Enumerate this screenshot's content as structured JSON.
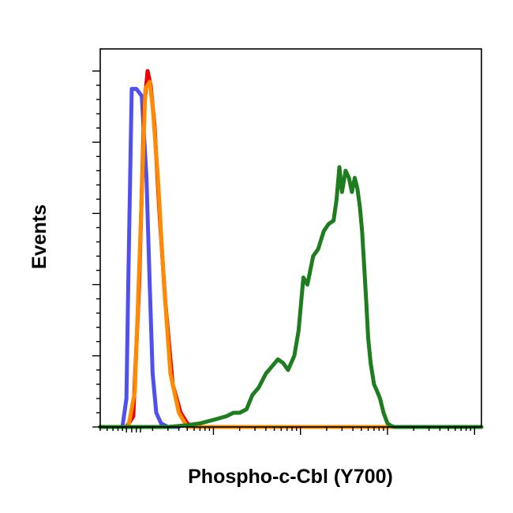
{
  "chart_data": {
    "type": "line",
    "title": "",
    "xlabel": "Phospho-c-Cbl (Y700)",
    "ylabel": "Events",
    "x_scale": "log",
    "xlim": [
      0.5,
      12000
    ],
    "ylim": [
      0,
      100
    ],
    "grid": false,
    "legend": "none",
    "x_tick_labels_shown": false,
    "y_tick_labels_shown": false,
    "series": [
      {
        "color": "#5050ee",
        "x": [
          0.5,
          0.9,
          1.0,
          1.05,
          1.15,
          1.3,
          1.5,
          1.7,
          1.85,
          2.0,
          2.2,
          2.5,
          3.0,
          4.0
        ],
        "y": [
          0,
          0,
          8,
          40,
          95,
          95,
          93,
          70,
          40,
          15,
          4,
          1,
          0,
          0
        ]
      },
      {
        "color": "#ee0000",
        "x": [
          0.5,
          1.0,
          1.2,
          1.4,
          1.6,
          1.75,
          1.9,
          2.1,
          2.4,
          2.8,
          3.4,
          4.2,
          5.0,
          6.0,
          7.0
        ],
        "y": [
          0,
          0,
          3,
          40,
          90,
          100,
          96,
          85,
          60,
          35,
          12,
          4,
          1,
          0,
          0
        ]
      },
      {
        "color": "#ff8c00",
        "x": [
          0.5,
          1.05,
          1.25,
          1.45,
          1.65,
          1.85,
          2.0,
          2.3,
          2.7,
          3.2,
          4.0,
          5.0,
          12000
        ],
        "y": [
          0,
          0,
          10,
          55,
          95,
          97,
          90,
          70,
          40,
          15,
          4,
          0,
          0
        ]
      },
      {
        "color": "#1e7d1e",
        "x": [
          0.5,
          3.0,
          5.0,
          7.0,
          10,
          14,
          17,
          20,
          24,
          28,
          33,
          40,
          47,
          55,
          63,
          72,
          85,
          95,
          108,
          120,
          140,
          160,
          185,
          210,
          240,
          260,
          280,
          300,
          330,
          360,
          390,
          420,
          450,
          480,
          510,
          540,
          570,
          600,
          640,
          700,
          760,
          820,
          900,
          1000,
          1100,
          1200,
          1400,
          1600,
          1800,
          2200,
          2800,
          4000,
          12000
        ],
        "y": [
          0,
          0,
          0.5,
          1,
          2,
          3,
          4,
          4,
          5,
          9,
          11,
          15,
          17,
          19,
          18,
          16,
          20,
          27,
          42,
          40,
          48,
          50,
          55,
          57,
          58,
          64,
          73,
          66,
          72,
          70,
          66,
          70,
          67,
          62,
          55,
          45,
          35,
          25,
          18,
          12,
          10,
          8,
          4,
          1,
          0.3,
          0,
          0,
          0,
          0,
          0,
          0,
          0,
          0
        ]
      }
    ]
  }
}
